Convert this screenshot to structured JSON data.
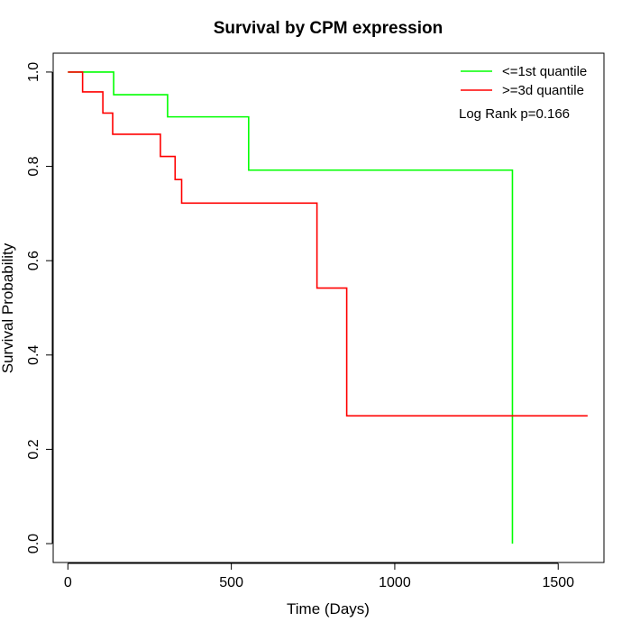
{
  "chart_data": {
    "type": "line",
    "title": "Survival by CPM expression",
    "xlabel": "Time (Days)",
    "ylabel": "Survival Probability",
    "xlim": [
      -45,
      1640
    ],
    "ylim": [
      -0.04,
      1.04
    ],
    "xticks": [
      0,
      500,
      1000,
      1500
    ],
    "yticks": [
      0.0,
      0.2,
      0.4,
      0.6,
      0.8,
      1.0
    ],
    "xtick_labels": [
      "0",
      "500",
      "1000",
      "1500"
    ],
    "ytick_labels": [
      "0.0",
      "0.2",
      "0.4",
      "0.6",
      "0.8",
      "1.0"
    ],
    "grid": false,
    "legend_position": "top-right",
    "annotation": "Log Rank p=0.166",
    "series": [
      {
        "name": "<=1st quantile",
        "color": "#00ff00",
        "step": "post",
        "x": [
          0,
          140,
          305,
          553,
          1360,
          1360
        ],
        "y": [
          1.0,
          0.952,
          0.905,
          0.792,
          0.792,
          0.0
        ]
      },
      {
        "name": ">=3d quantile",
        "color": "#ff0000",
        "step": "post",
        "x": [
          0,
          45,
          107,
          137,
          283,
          328,
          348,
          762,
          853,
          1590
        ],
        "y": [
          1.0,
          0.958,
          0.913,
          0.868,
          0.821,
          0.772,
          0.722,
          0.542,
          0.271,
          0.271
        ]
      }
    ]
  }
}
